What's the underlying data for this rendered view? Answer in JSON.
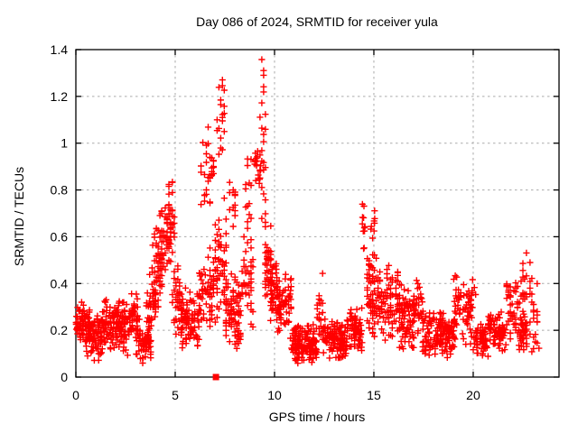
{
  "page": {
    "background": "#ffffff"
  },
  "chart_data": {
    "type": "scatter",
    "title": "Day 086 of 2024, SRMTID for receiver yula",
    "xlabel": "GPS time / hours",
    "ylabel": "SRMTID / TECUs",
    "xlim": [
      0,
      24.32
    ],
    "ylim": [
      0,
      1.4
    ],
    "xticks": [
      {
        "v": 0,
        "label": "0"
      },
      {
        "v": 5,
        "label": "5"
      },
      {
        "v": 10,
        "label": "10"
      },
      {
        "v": 15,
        "label": "15"
      },
      {
        "v": 20,
        "label": "20"
      }
    ],
    "yticks": [
      {
        "v": 0,
        "label": "0"
      },
      {
        "v": 0.2,
        "label": "0.2"
      },
      {
        "v": 0.4,
        "label": "0.4"
      },
      {
        "v": 0.6,
        "label": "0.6"
      },
      {
        "v": 0.8,
        "label": "0.8"
      },
      {
        "v": 1,
        "label": "1"
      },
      {
        "v": 1.2,
        "label": "1.2"
      },
      {
        "v": 1.4,
        "label": "1.4"
      }
    ],
    "grid": true,
    "grid_color": "#aaaaaa",
    "axis_color": "#000000",
    "text_color": "#000000",
    "marker": "plus",
    "marker_color": "#ff0000",
    "marker_size": 7,
    "legend": null,
    "special_points": [
      {
        "x": 7.05,
        "y": 0,
        "marker": "filled-square"
      }
    ],
    "clusters_format": [
      "x_start_hours",
      "x_end_hours",
      "count",
      "y_min_TECUs",
      "y_max_TECUs"
    ],
    "clusters": [
      [
        0.0,
        0.7,
        75,
        0.13,
        0.33
      ],
      [
        0.5,
        1.3,
        80,
        0.07,
        0.28
      ],
      [
        1.3,
        2.3,
        100,
        0.1,
        0.34
      ],
      [
        2.3,
        3.2,
        90,
        0.08,
        0.37
      ],
      [
        3.2,
        3.8,
        50,
        0.04,
        0.22
      ],
      [
        3.55,
        4.05,
        40,
        0.15,
        0.47
      ],
      [
        3.9,
        4.4,
        48,
        0.28,
        0.68
      ],
      [
        4.25,
        4.7,
        38,
        0.42,
        0.78
      ],
      [
        4.55,
        4.95,
        38,
        0.45,
        0.86
      ],
      [
        4.85,
        5.35,
        40,
        0.12,
        0.5
      ],
      [
        5.3,
        6.25,
        85,
        0.1,
        0.41
      ],
      [
        6.2,
        6.7,
        28,
        0.18,
        0.52
      ],
      [
        6.3,
        6.95,
        34,
        0.68,
        1.08
      ],
      [
        6.6,
        7.15,
        40,
        0.18,
        0.56
      ],
      [
        7.1,
        7.5,
        20,
        0.92,
        1.3
      ],
      [
        7.0,
        7.6,
        42,
        0.25,
        0.8
      ],
      [
        7.5,
        8.35,
        85,
        0.1,
        0.48
      ],
      [
        7.7,
        8.1,
        12,
        0.55,
        0.95
      ],
      [
        8.3,
        8.95,
        38,
        0.18,
        0.62
      ],
      [
        8.45,
        8.85,
        15,
        0.55,
        1.0
      ],
      [
        9.0,
        9.3,
        15,
        0.78,
        1.02
      ],
      [
        9.25,
        9.55,
        26,
        0.6,
        1.387
      ],
      [
        9.5,
        9.85,
        40,
        0.28,
        0.72
      ],
      [
        9.8,
        10.15,
        40,
        0.22,
        0.52
      ],
      [
        10.1,
        10.85,
        65,
        0.14,
        0.46
      ],
      [
        10.85,
        12.15,
        140,
        0.05,
        0.23
      ],
      [
        12.15,
        12.5,
        20,
        0.1,
        0.47
      ],
      [
        12.45,
        13.65,
        110,
        0.06,
        0.26
      ],
      [
        13.65,
        14.42,
        70,
        0.08,
        0.31
      ],
      [
        14.42,
        14.58,
        11,
        0.45,
        0.78
      ],
      [
        14.6,
        15.45,
        85,
        0.15,
        0.56
      ],
      [
        14.8,
        15.1,
        8,
        0.55,
        0.77
      ],
      [
        15.45,
        16.35,
        75,
        0.12,
        0.5
      ],
      [
        16.35,
        17.05,
        70,
        0.1,
        0.38
      ],
      [
        17.0,
        17.45,
        28,
        0.15,
        0.47
      ],
      [
        17.45,
        18.65,
        110,
        0.08,
        0.3
      ],
      [
        18.65,
        19.05,
        42,
        0.08,
        0.26
      ],
      [
        19.0,
        19.6,
        36,
        0.14,
        0.48
      ],
      [
        19.6,
        20.15,
        45,
        0.1,
        0.43
      ],
      [
        20.15,
        20.75,
        52,
        0.07,
        0.25
      ],
      [
        20.75,
        21.65,
        70,
        0.09,
        0.3
      ],
      [
        21.65,
        22.3,
        45,
        0.1,
        0.46
      ],
      [
        22.3,
        22.7,
        35,
        0.1,
        0.3
      ],
      [
        22.4,
        22.9,
        26,
        0.15,
        0.55
      ],
      [
        22.85,
        23.3,
        20,
        0.05,
        0.45
      ]
    ]
  }
}
